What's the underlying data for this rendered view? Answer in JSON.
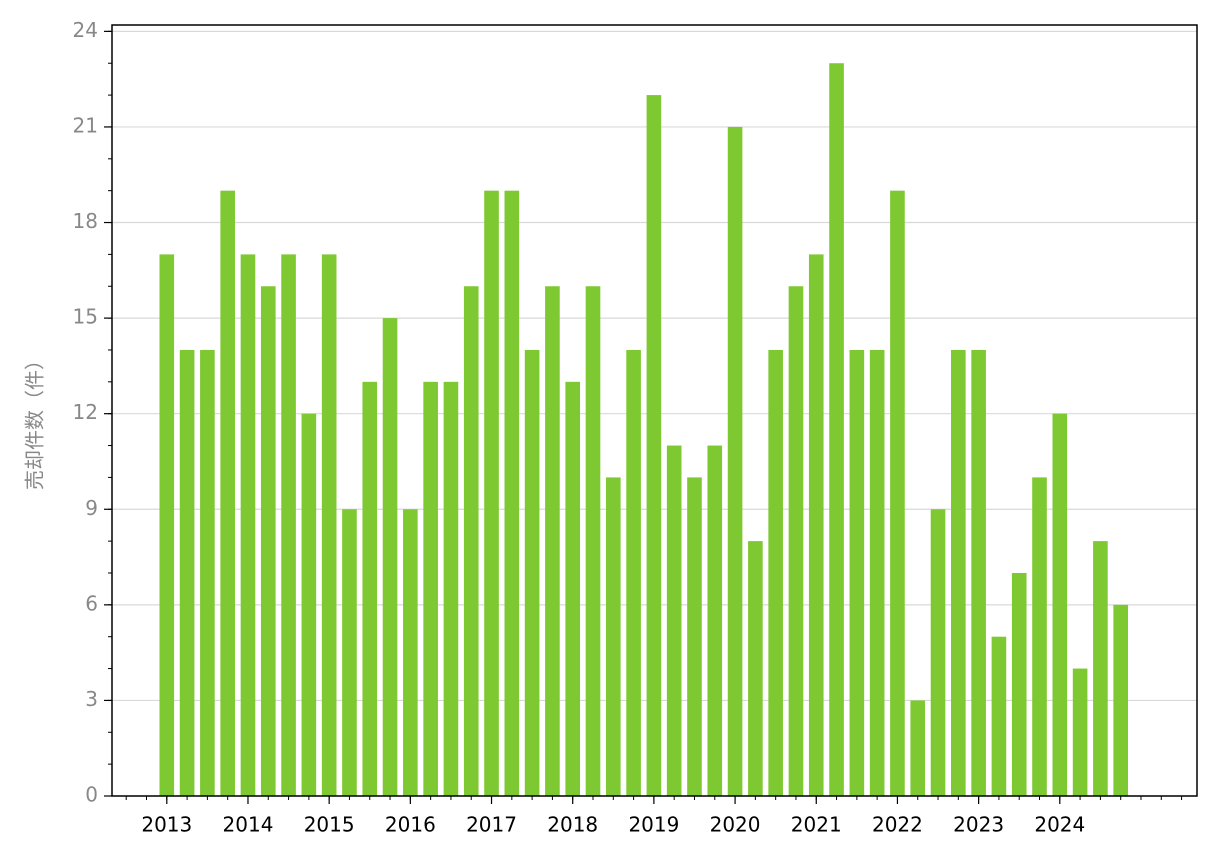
{
  "chart_data": {
    "type": "bar",
    "y_label": "売却件数（件）",
    "categories": [
      "2013",
      null,
      null,
      null,
      "2014",
      null,
      null,
      null,
      "2015",
      null,
      null,
      null,
      "2016",
      null,
      null,
      null,
      "2017",
      null,
      null,
      null,
      "2018",
      null,
      null,
      null,
      "2019",
      null,
      null,
      null,
      "2020",
      null,
      null,
      null,
      "2021",
      null,
      null,
      null,
      "2022",
      null,
      null,
      null,
      "2023",
      null,
      null,
      null,
      "2024",
      null,
      null,
      null
    ],
    "values": [
      17,
      14,
      14,
      19,
      17,
      16,
      17,
      12,
      17,
      9,
      13,
      15,
      9,
      13,
      13,
      16,
      19,
      19,
      14,
      16,
      13,
      16,
      10,
      14,
      22,
      11,
      10,
      11,
      21,
      8,
      14,
      16,
      17,
      23,
      14,
      14,
      19,
      3,
      9,
      14,
      14,
      5,
      7,
      10,
      12,
      4,
      8,
      6
    ],
    "color": "#7ec832",
    "ylim": [
      0,
      24.2
    ],
    "yticks": [
      0,
      3,
      6,
      9,
      12,
      15,
      18,
      21,
      24
    ],
    "grid": true
  }
}
